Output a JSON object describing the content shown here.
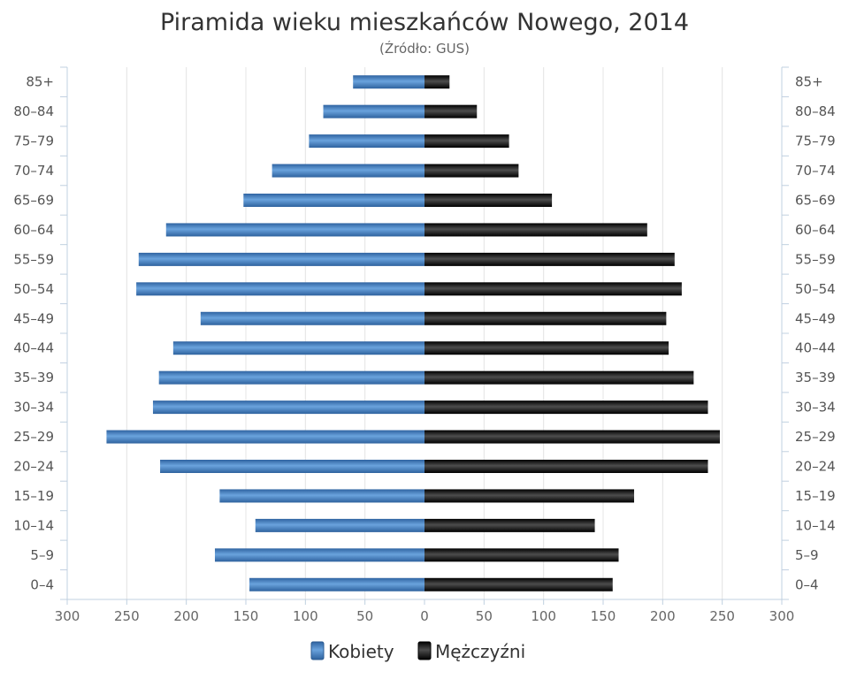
{
  "chart_data": {
    "type": "bar",
    "orientation": "horizontal",
    "layout": "population-pyramid",
    "title": "Piramida wieku mieszkańców Nowego, 2014",
    "subtitle": "(Źródło: GUS)",
    "categories": [
      "0–4",
      "5–9",
      "10–14",
      "15–19",
      "20–24",
      "25–29",
      "30–34",
      "35–39",
      "40–44",
      "45–49",
      "50–54",
      "55–59",
      "60–64",
      "65–69",
      "70–74",
      "75–79",
      "80–84",
      "85+"
    ],
    "series": [
      {
        "name": "Kobiety",
        "side": "left",
        "color": "#3a76b3",
        "values": [
          147,
          176,
          142,
          172,
          222,
          267,
          228,
          223,
          211,
          188,
          242,
          240,
          217,
          152,
          128,
          97,
          85,
          60
        ]
      },
      {
        "name": "Mężczyźni",
        "side": "right",
        "color": "#111111",
        "values": [
          158,
          163,
          143,
          176,
          238,
          248,
          238,
          226,
          205,
          203,
          216,
          210,
          187,
          107,
          79,
          71,
          44,
          21
        ]
      }
    ],
    "xlim": [
      -300,
      300
    ],
    "xticks": [
      -300,
      -250,
      -200,
      -150,
      -100,
      -50,
      0,
      50,
      100,
      150,
      200,
      250,
      300
    ],
    "xtick_labels": [
      "300",
      "250",
      "200",
      "150",
      "100",
      "50",
      "0",
      "50",
      "100",
      "150",
      "200",
      "250",
      "300"
    ],
    "grid": true,
    "legend_position": "bottom-center"
  }
}
